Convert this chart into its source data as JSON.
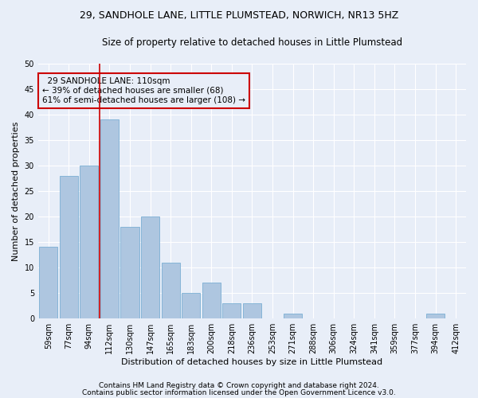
{
  "title": "29, SANDHOLE LANE, LITTLE PLUMSTEAD, NORWICH, NR13 5HZ",
  "subtitle": "Size of property relative to detached houses in Little Plumstead",
  "xlabel": "Distribution of detached houses by size in Little Plumstead",
  "ylabel": "Number of detached properties",
  "categories": [
    "59sqm",
    "77sqm",
    "94sqm",
    "112sqm",
    "130sqm",
    "147sqm",
    "165sqm",
    "183sqm",
    "200sqm",
    "218sqm",
    "236sqm",
    "253sqm",
    "271sqm",
    "288sqm",
    "306sqm",
    "324sqm",
    "341sqm",
    "359sqm",
    "377sqm",
    "394sqm",
    "412sqm"
  ],
  "values": [
    14,
    28,
    30,
    39,
    18,
    20,
    11,
    5,
    7,
    3,
    3,
    0,
    1,
    0,
    0,
    0,
    0,
    0,
    0,
    1,
    0
  ],
  "bar_color": "#aec6e0",
  "bar_edge_color": "#7aafd4",
  "ylim": [
    0,
    50
  ],
  "yticks": [
    0,
    5,
    10,
    15,
    20,
    25,
    30,
    35,
    40,
    45,
    50
  ],
  "property_label": "29 SANDHOLE LANE: 110sqm",
  "pct_smaller": "39% of detached houses are smaller (68)",
  "pct_larger": "61% of semi-detached houses are larger (108)",
  "vline_category_index": 3,
  "annotation_box_color": "#cc0000",
  "footnote1": "Contains HM Land Registry data © Crown copyright and database right 2024.",
  "footnote2": "Contains public sector information licensed under the Open Government Licence v3.0.",
  "background_color": "#e8eef8",
  "grid_color": "#ffffff",
  "title_fontsize": 9,
  "subtitle_fontsize": 8.5,
  "axis_label_fontsize": 8,
  "tick_fontsize": 7,
  "annotation_fontsize": 7.5,
  "footnote_fontsize": 6.5
}
